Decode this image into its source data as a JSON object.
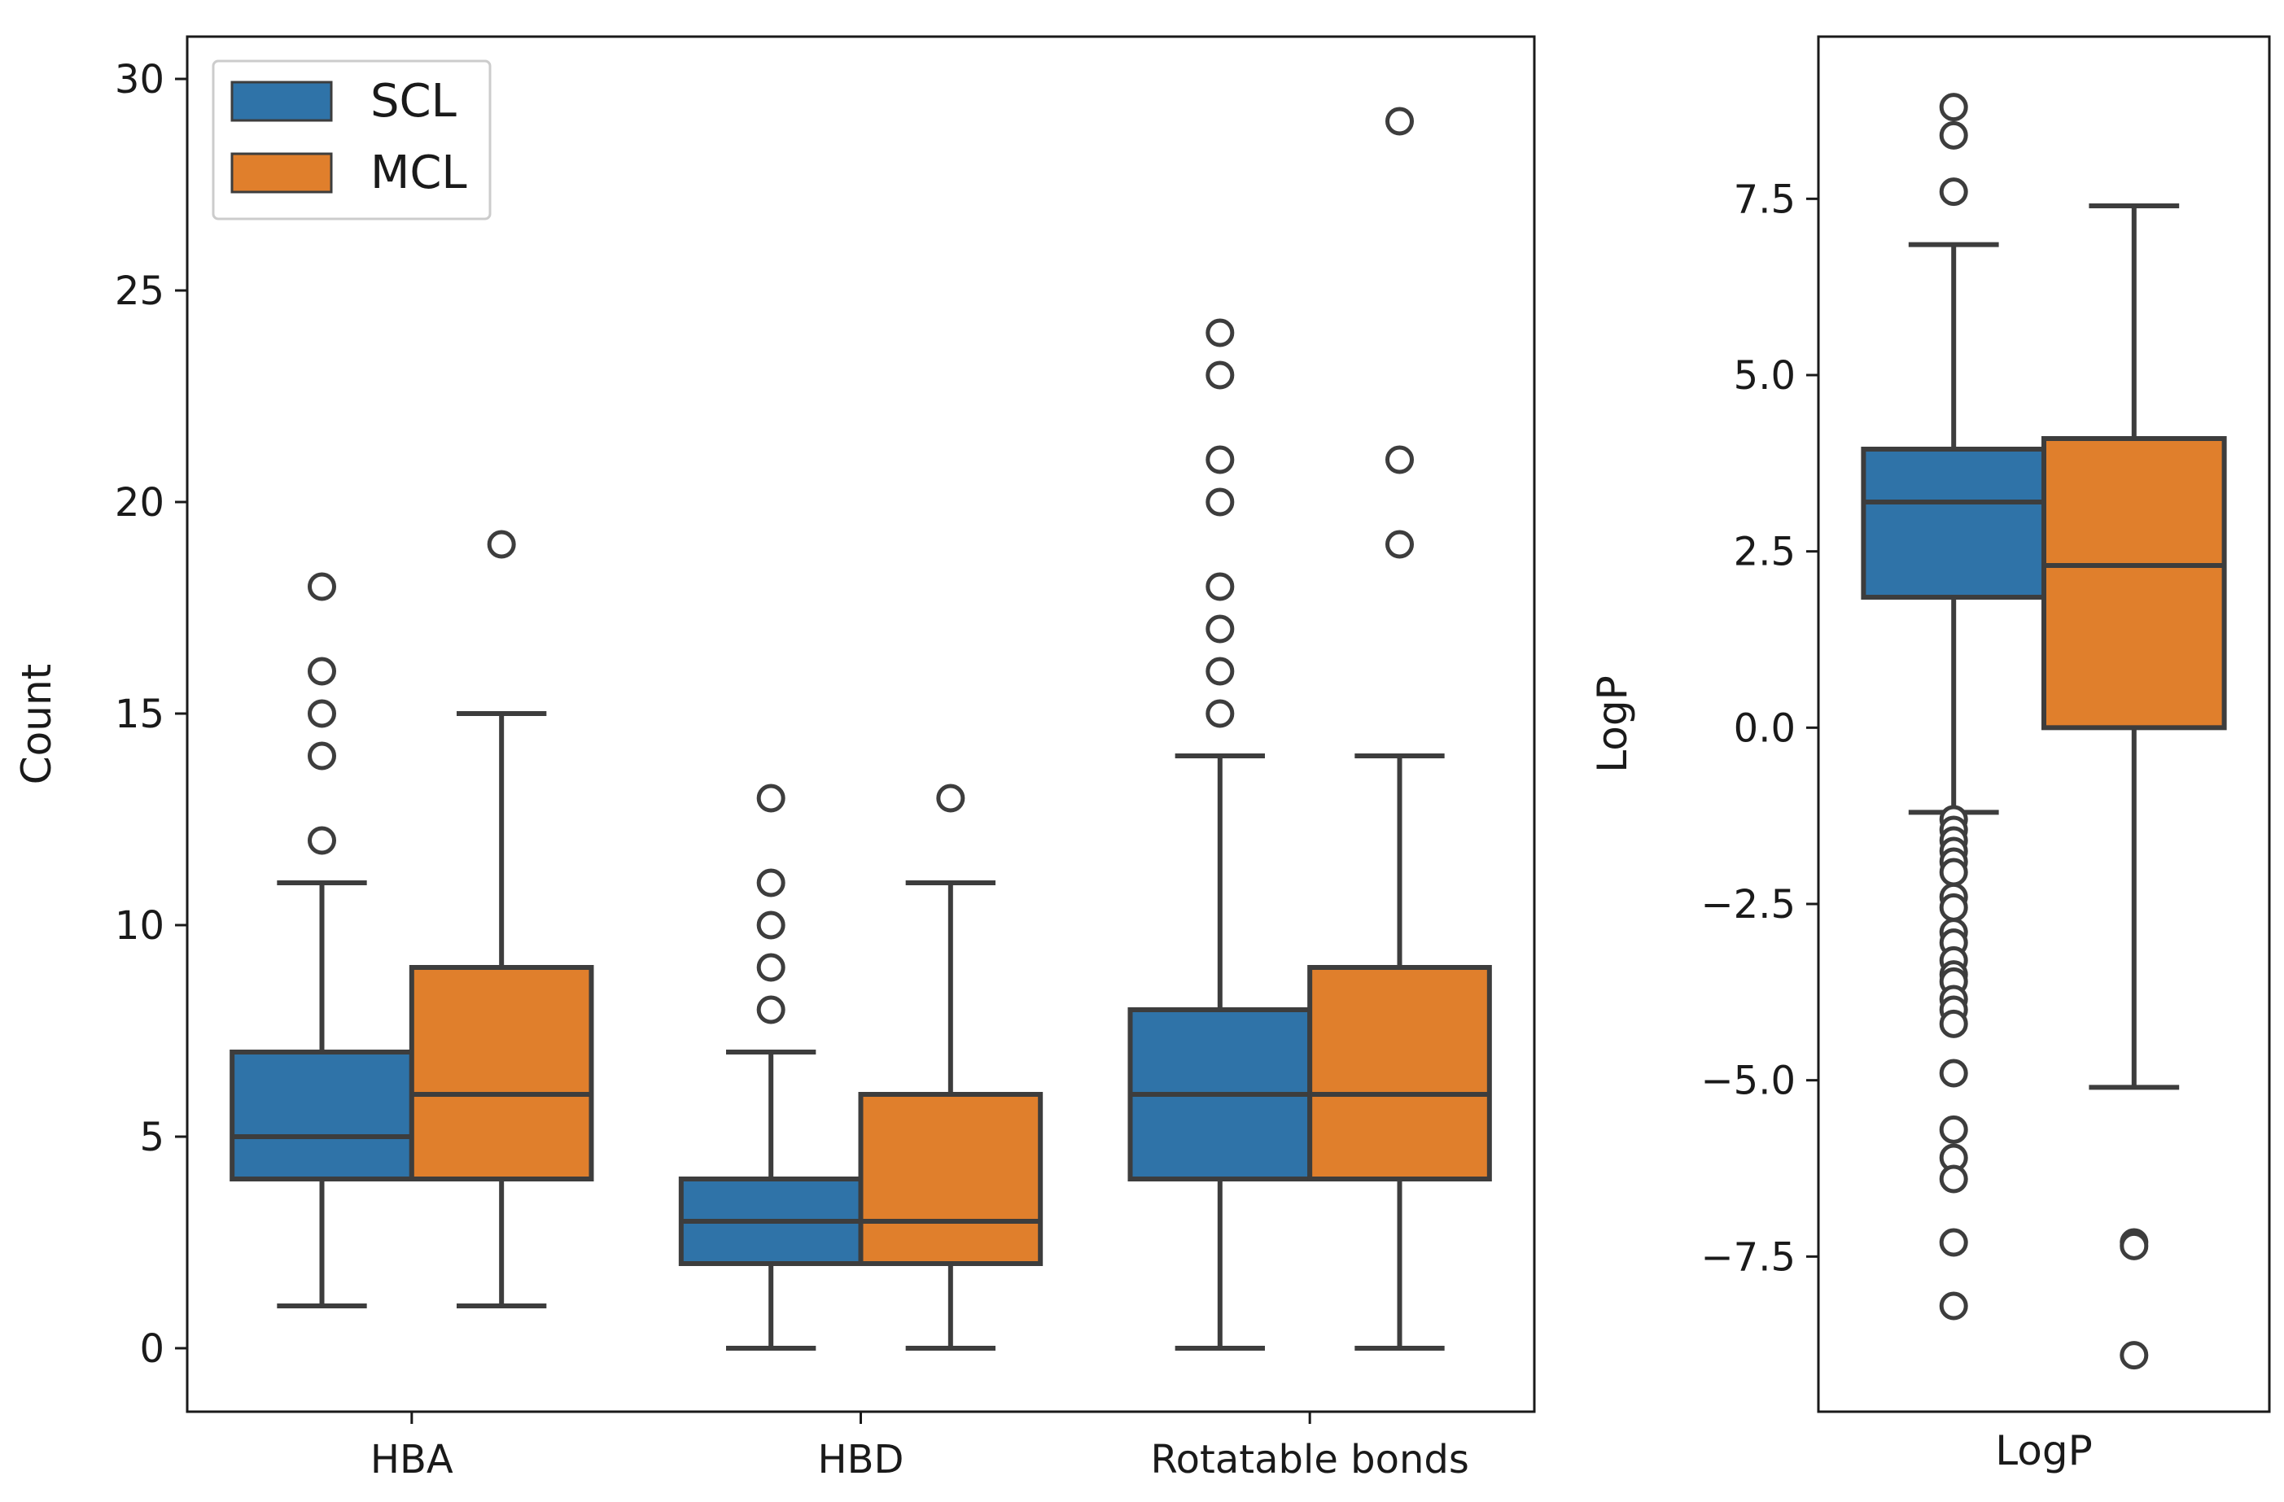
{
  "chart_data": [
    {
      "type": "boxplot",
      "ylabel": "Count",
      "xlabel": "",
      "ylim": [
        -1.5,
        31
      ],
      "yticks": [
        0,
        5,
        10,
        15,
        20,
        25,
        30
      ],
      "categories": [
        "HBA",
        "HBD",
        "Rotatable bonds"
      ],
      "legend": {
        "placement": "top-left",
        "entries": [
          "SCL",
          "MCL"
        ]
      },
      "series": [
        {
          "name": "SCL",
          "color": "#2f73a8",
          "boxes": [
            {
              "category": "HBA",
              "whisker_low": 1,
              "q1": 4,
              "median": 5,
              "q3": 7,
              "whisker_high": 11,
              "outliers": [
                12,
                14,
                15,
                16,
                18
              ]
            },
            {
              "category": "HBD",
              "whisker_low": 0,
              "q1": 2,
              "median": 3,
              "q3": 4,
              "whisker_high": 7,
              "outliers": [
                8,
                9,
                10,
                11,
                13
              ]
            },
            {
              "category": "Rotatable bonds",
              "whisker_low": 0,
              "q1": 4,
              "median": 6,
              "q3": 8,
              "whisker_high": 14,
              "outliers": [
                15,
                16,
                17,
                18,
                20,
                21,
                23,
                24
              ]
            }
          ]
        },
        {
          "name": "MCL",
          "color": "#e07f2c",
          "boxes": [
            {
              "category": "HBA",
              "whisker_low": 1,
              "q1": 4,
              "median": 6,
              "q3": 9,
              "whisker_high": 15,
              "outliers": [
                19
              ]
            },
            {
              "category": "HBD",
              "whisker_low": 0,
              "q1": 2,
              "median": 3,
              "q3": 6,
              "whisker_high": 11,
              "outliers": [
                13
              ]
            },
            {
              "category": "Rotatable bonds",
              "whisker_low": 0,
              "q1": 4,
              "median": 6,
              "q3": 9,
              "whisker_high": 14,
              "outliers": [
                19,
                21,
                29
              ]
            }
          ]
        }
      ]
    },
    {
      "type": "boxplot",
      "ylabel": "LogP",
      "xlabel": "LogP",
      "ylim": [
        -9.7,
        9.8
      ],
      "yticks": [
        -7.5,
        -5.0,
        -2.5,
        0.0,
        2.5,
        5.0,
        7.5
      ],
      "ytick_labels": [
        "−7.5",
        "−5.0",
        "−2.5",
        "0.0",
        "2.5",
        "5.0",
        "7.5"
      ],
      "series": [
        {
          "name": "SCL",
          "color": "#2f73a8",
          "box": {
            "whisker_low": -1.2,
            "q1": 1.85,
            "median": 3.2,
            "q3": 3.95,
            "whisker_high": 6.85,
            "outliers": [
              7.6,
              8.4,
              8.8,
              -1.3,
              -1.45,
              -1.6,
              -1.75,
              -1.9,
              -2.05,
              -2.4,
              -2.55,
              -2.9,
              -3.05,
              -3.3,
              -3.5,
              -3.6,
              -3.85,
              -4.0,
              -4.2,
              -4.9,
              -5.7,
              -6.1,
              -6.4,
              -7.3,
              -8.2
            ]
          }
        },
        {
          "name": "MCL",
          "color": "#e07f2c",
          "box": {
            "whisker_low": -5.1,
            "q1": 0.0,
            "median": 2.3,
            "q3": 4.1,
            "whisker_high": 7.4,
            "outliers": [
              -7.3,
              -7.35,
              -8.9
            ]
          }
        }
      ]
    }
  ]
}
